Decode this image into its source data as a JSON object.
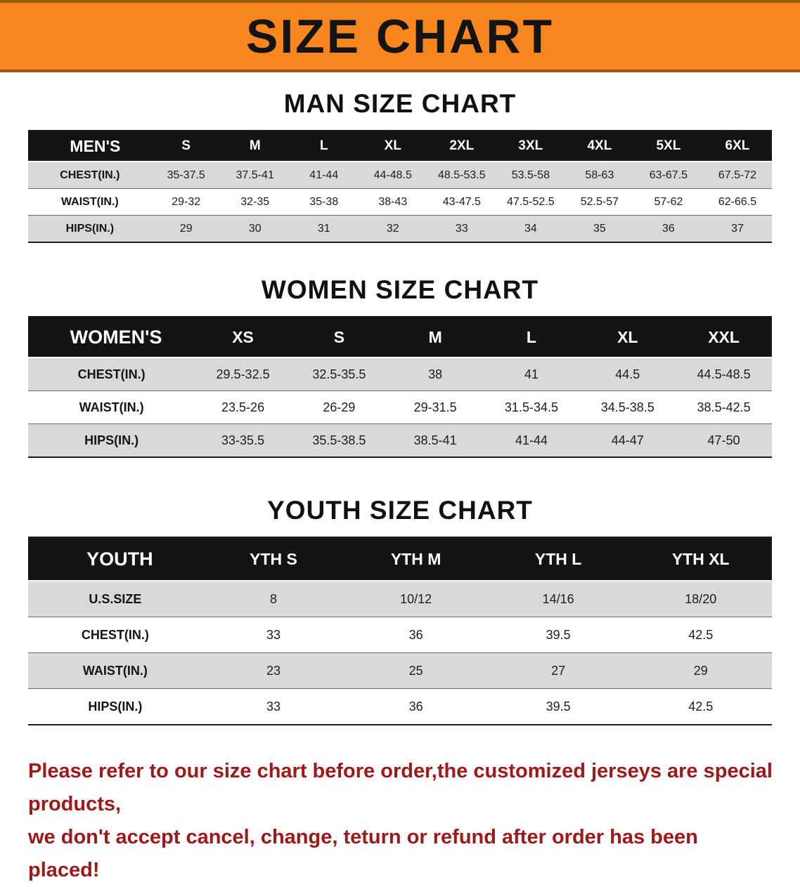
{
  "banner": {
    "title": "SIZE CHART",
    "bg_color": "#F6861D",
    "text_color": "#141414"
  },
  "sections": [
    {
      "heading": "MAN SIZE CHART",
      "table": {
        "header_label": "MEN'S",
        "columns": [
          "S",
          "M",
          "L",
          "XL",
          "2XL",
          "3XL",
          "4XL",
          "5XL",
          "6XL"
        ],
        "rows": [
          {
            "label": "CHEST(IN.)",
            "values": [
              "35-37.5",
              "37.5-41",
              "41-44",
              "44-48.5",
              "48.5-53.5",
              "53.5-58",
              "58-63",
              "63-67.5",
              "67.5-72"
            ]
          },
          {
            "label": "WAIST(IN.)",
            "values": [
              "29-32",
              "32-35",
              "35-38",
              "38-43",
              "43-47.5",
              "47.5-52.5",
              "52.5-57",
              "57-62",
              "62-66.5"
            ]
          },
          {
            "label": "HIPS(IN.)",
            "values": [
              "29",
              "30",
              "31",
              "32",
              "33",
              "34",
              "35",
              "36",
              "37"
            ]
          }
        ]
      }
    },
    {
      "heading": "WOMEN SIZE CHART",
      "table": {
        "header_label": "WOMEN'S",
        "columns": [
          "XS",
          "S",
          "M",
          "L",
          "XL",
          "XXL"
        ],
        "rows": [
          {
            "label": "CHEST(IN.)",
            "values": [
              "29.5-32.5",
              "32.5-35.5",
              "38",
              "41",
              "44.5",
              "44.5-48.5"
            ]
          },
          {
            "label": "WAIST(IN.)",
            "values": [
              "23.5-26",
              "26-29",
              "29-31.5",
              "31.5-34.5",
              "34.5-38.5",
              "38.5-42.5"
            ]
          },
          {
            "label": "HIPS(IN.)",
            "values": [
              "33-35.5",
              "35.5-38.5",
              "38.5-41",
              "41-44",
              "44-47",
              "47-50"
            ]
          }
        ]
      }
    },
    {
      "heading": "YOUTH SIZE CHART",
      "table": {
        "header_label": "YOUTH",
        "columns": [
          "YTH S",
          "YTH M",
          "YTH L",
          "YTH XL"
        ],
        "rows": [
          {
            "label": "U.S.SIZE",
            "values": [
              "8",
              "10/12",
              "14/16",
              "18/20"
            ]
          },
          {
            "label": "CHEST(IN.)",
            "values": [
              "33",
              "36",
              "39.5",
              "42.5"
            ]
          },
          {
            "label": "WAIST(IN.)",
            "values": [
              "23",
              "25",
              "27",
              "29"
            ]
          },
          {
            "label": "HIPS(IN.)",
            "values": [
              "33",
              "36",
              "39.5",
              "42.5"
            ]
          }
        ]
      }
    }
  ],
  "footer": {
    "line1": "Please refer to our size chart before order,the customized jerseys are special products,",
    "line2": "we don't accept cancel, change, teturn or refund after order has been placed!",
    "color": "#A01818"
  }
}
